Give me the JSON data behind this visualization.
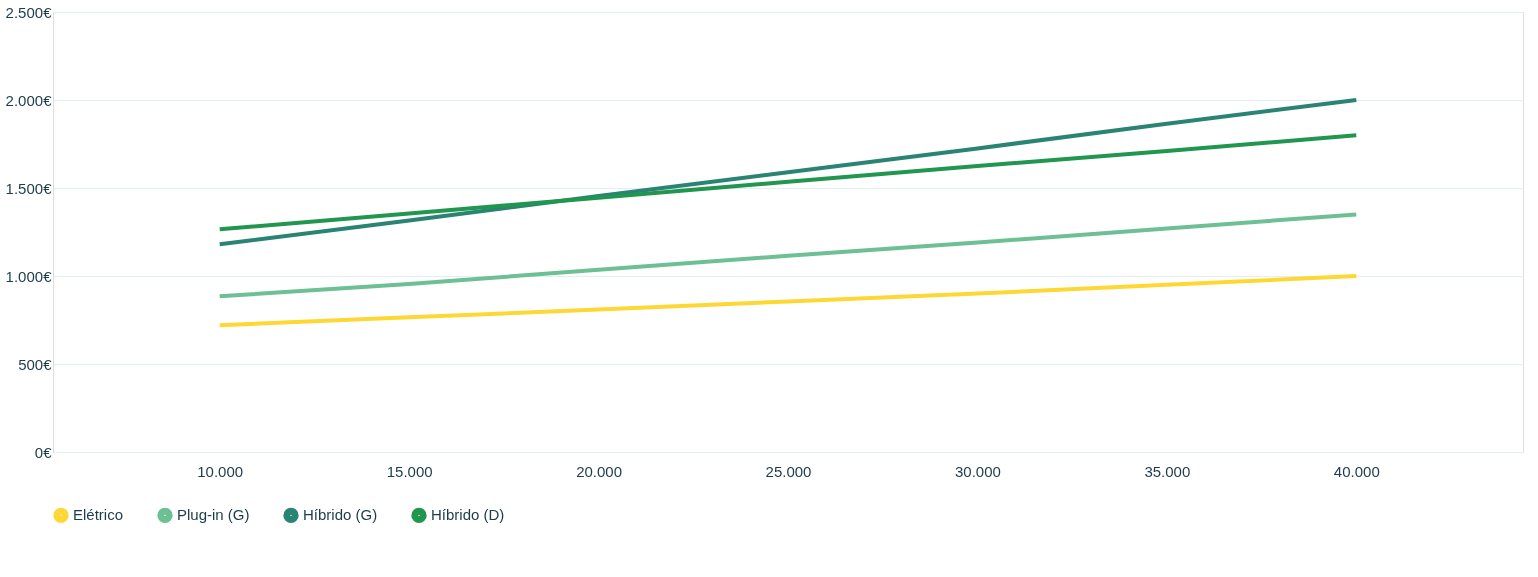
{
  "chart_data": {
    "type": "line",
    "x": [
      10000,
      15000,
      20000,
      25000,
      30000,
      35000,
      40000
    ],
    "series": [
      {
        "name": "Elétrico",
        "color": "#fdd835",
        "values": [
          720,
          765,
          810,
          855,
          900,
          950,
          1000
        ]
      },
      {
        "name": "Plug-in (G)",
        "color": "#6cc093",
        "values": [
          885,
          955,
          1035,
          1115,
          1190,
          1270,
          1350
        ]
      },
      {
        "name": "Híbrido (G)",
        "color": "#2a8474",
        "values": [
          1180,
          1315,
          1455,
          1590,
          1725,
          1865,
          2000
        ]
      },
      {
        "name": "Híbrido (D)",
        "color": "#21964f",
        "values": [
          1265,
          1355,
          1445,
          1535,
          1625,
          1710,
          1800
        ]
      }
    ],
    "xlim": [
      5600,
      44400
    ],
    "xticks": [
      {
        "value": 10000,
        "label": "10.000"
      },
      {
        "value": 15000,
        "label": "15.000"
      },
      {
        "value": 20000,
        "label": "20.000"
      },
      {
        "value": 25000,
        "label": "25.000"
      },
      {
        "value": 30000,
        "label": "30.000"
      },
      {
        "value": 35000,
        "label": "35.000"
      },
      {
        "value": 40000,
        "label": "40.000"
      }
    ],
    "ylim": [
      0,
      2500
    ],
    "yticks": [
      {
        "value": 0,
        "label": "0€"
      },
      {
        "value": 500,
        "label": "500€"
      },
      {
        "value": 1000,
        "label": "1.000€"
      },
      {
        "value": 1500,
        "label": "1.500€"
      },
      {
        "value": 2000,
        "label": "2.000€"
      },
      {
        "value": 2500,
        "label": "2.500€"
      }
    ],
    "grid": "y",
    "legend": "bottom left",
    "marker": "none",
    "line_style": "solid"
  }
}
